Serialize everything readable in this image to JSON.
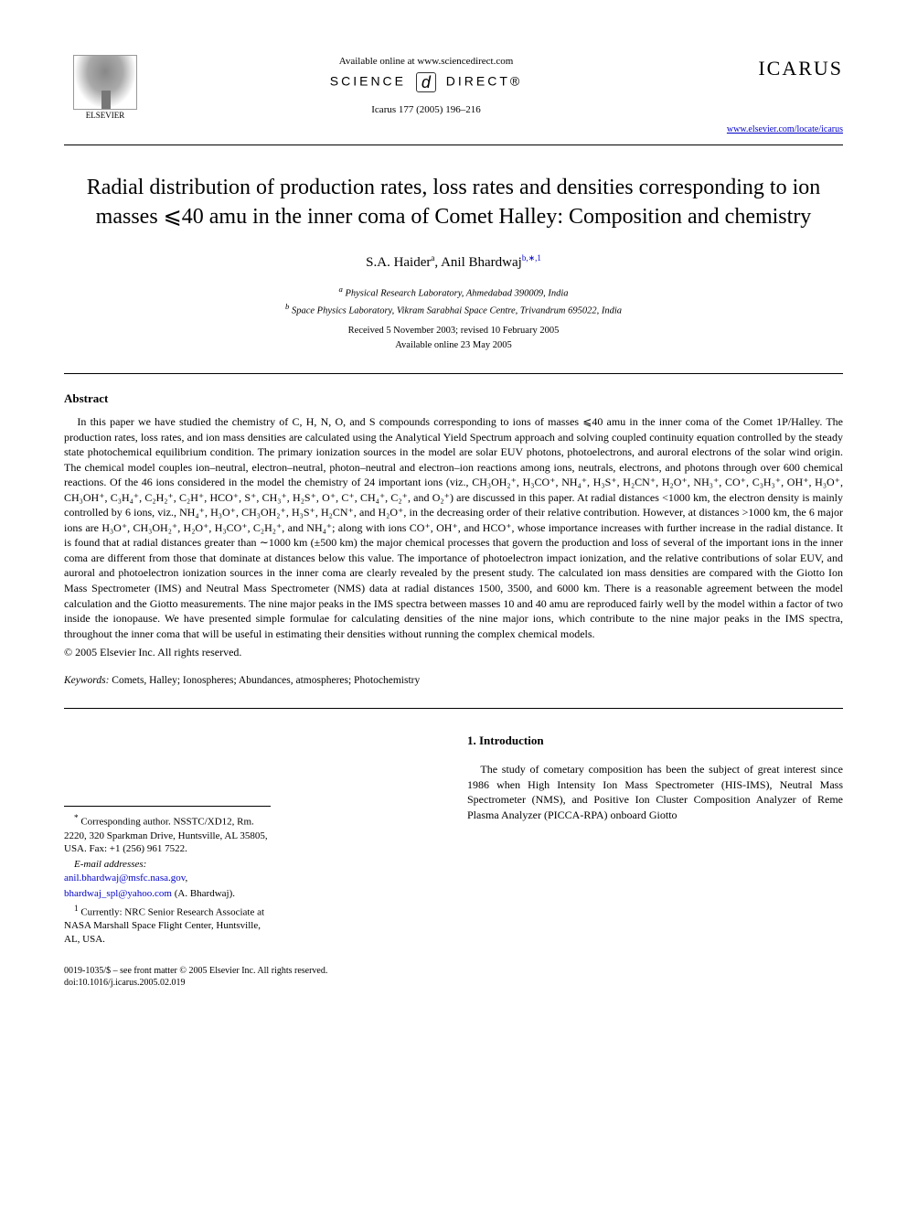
{
  "header": {
    "publisher_name": "ELSEVIER",
    "available_text": "Available online at www.sciencedirect.com",
    "science_direct_left": "SCIENCE",
    "science_direct_right": "DIRECT®",
    "citation": "Icarus 177 (2005) 196–216",
    "journal_name": "ICARUS",
    "journal_url": "www.elsevier.com/locate/icarus"
  },
  "title": "Radial distribution of production rates, loss rates and densities corresponding to ion masses ⩽40 amu in the inner coma of Comet Halley: Composition and chemistry",
  "authors": {
    "a1_name": "S.A. Haider",
    "a1_sup": "a",
    "a2_name": "Anil Bhardwaj",
    "a2_sup": "b,∗,1"
  },
  "affiliations": {
    "a": "Physical Research Laboratory, Ahmedabad 390009, India",
    "b": "Space Physics Laboratory, Vikram Sarabhai Space Centre, Trivandrum 695022, India"
  },
  "dates": {
    "received": "Received 5 November 2003; revised 10 February 2005",
    "online": "Available online 23 May 2005"
  },
  "abstract": {
    "heading": "Abstract",
    "text": "In this paper we have studied the chemistry of C, H, N, O, and S compounds corresponding to ions of masses ⩽40 amu in the inner coma of the Comet 1P/Halley. The production rates, loss rates, and ion mass densities are calculated using the Analytical Yield Spectrum approach and solving coupled continuity equation controlled by the steady state photochemical equilibrium condition. The primary ionization sources in the model are solar EUV photons, photoelectrons, and auroral electrons of the solar wind origin. The chemical model couples ion–neutral, electron–neutral, photon–neutral and electron–ion reactions among ions, neutrals, electrons, and photons through over 600 chemical reactions. Of the 46 ions considered in the model the chemistry of 24 important ions (viz., CH₃OH₂⁺, H₃CO⁺, NH₄⁺, H₃S⁺, H₂CN⁺, H₂O⁺, NH₃⁺, CO⁺, C₃H₃⁺, OH⁺, H₃O⁺, CH₃OH⁺, C₃H₄⁺, C₂H₂⁺, C₂H⁺, HCO⁺, S⁺, CH₃⁺, H₂S⁺, O⁺, C⁺, CH₄⁺, C₂⁺, and O₂⁺) are discussed in this paper. At radial distances <1000 km, the electron density is mainly controlled by 6 ions, viz., NH₄⁺, H₃O⁺, CH₃OH₂⁺, H₃S⁺, H₂CN⁺, and H₂O⁺, in the decreasing order of their relative contribution. However, at distances >1000 km, the 6 major ions are H₃O⁺, CH₃OH₂⁺, H₂O⁺, H₃CO⁺, C₂H₂⁺, and NH₄⁺; along with ions CO⁺, OH⁺, and HCO⁺, whose importance increases with further increase in the radial distance. It is found that at radial distances greater than ∼1000 km (±500 km) the major chemical processes that govern the production and loss of several of the important ions in the inner coma are different from those that dominate at distances below this value. The importance of photoelectron impact ionization, and the relative contributions of solar EUV, and auroral and photoelectron ionization sources in the inner coma are clearly revealed by the present study. The calculated ion mass densities are compared with the Giotto Ion Mass Spectrometer (IMS) and Neutral Mass Spectrometer (NMS) data at radial distances 1500, 3500, and 6000 km. There is a reasonable agreement between the model calculation and the Giotto measurements. The nine major peaks in the IMS spectra between masses 10 and 40 amu are reproduced fairly well by the model within a factor of two inside the ionopause. We have presented simple formulae for calculating densities of the nine major ions, which contribute to the nine major peaks in the IMS spectra, throughout the inner coma that will be useful in estimating their densities without running the complex chemical models.",
    "copyright": "© 2005 Elsevier Inc. All rights reserved."
  },
  "keywords": {
    "label": "Keywords:",
    "text": "Comets, Halley; Ionospheres; Abundances, atmospheres; Photochemistry"
  },
  "intro": {
    "heading": "1. Introduction",
    "text": "The study of cometary composition has been the subject of great interest since 1986 when High Intensity Ion Mass Spectrometer (HIS-IMS), Neutral Mass Spectrometer (NMS), and Positive Ion Cluster Composition Analyzer of Reme Plasma Analyzer (PICCA-RPA) onboard Giotto"
  },
  "footnotes": {
    "corresponding": "Corresponding author. NSSTC/XD12, Rm. 2220, 320 Sparkman Drive, Huntsville, AL 35805, USA. Fax: +1 (256) 961 7522.",
    "email_label": "E-mail addresses:",
    "email1": "anil.bhardwaj@msfc.nasa.gov",
    "email2": "bhardwaj_spl@yahoo.com",
    "email_author": "(A. Bhardwaj).",
    "note1": "Currently: NRC Senior Research Associate at NASA Marshall Space Flight Center, Huntsville, AL, USA."
  },
  "bottom": {
    "issn": "0019-1035/$ – see front matter © 2005 Elsevier Inc. All rights reserved.",
    "doi": "doi:10.1016/j.icarus.2005.02.019"
  }
}
